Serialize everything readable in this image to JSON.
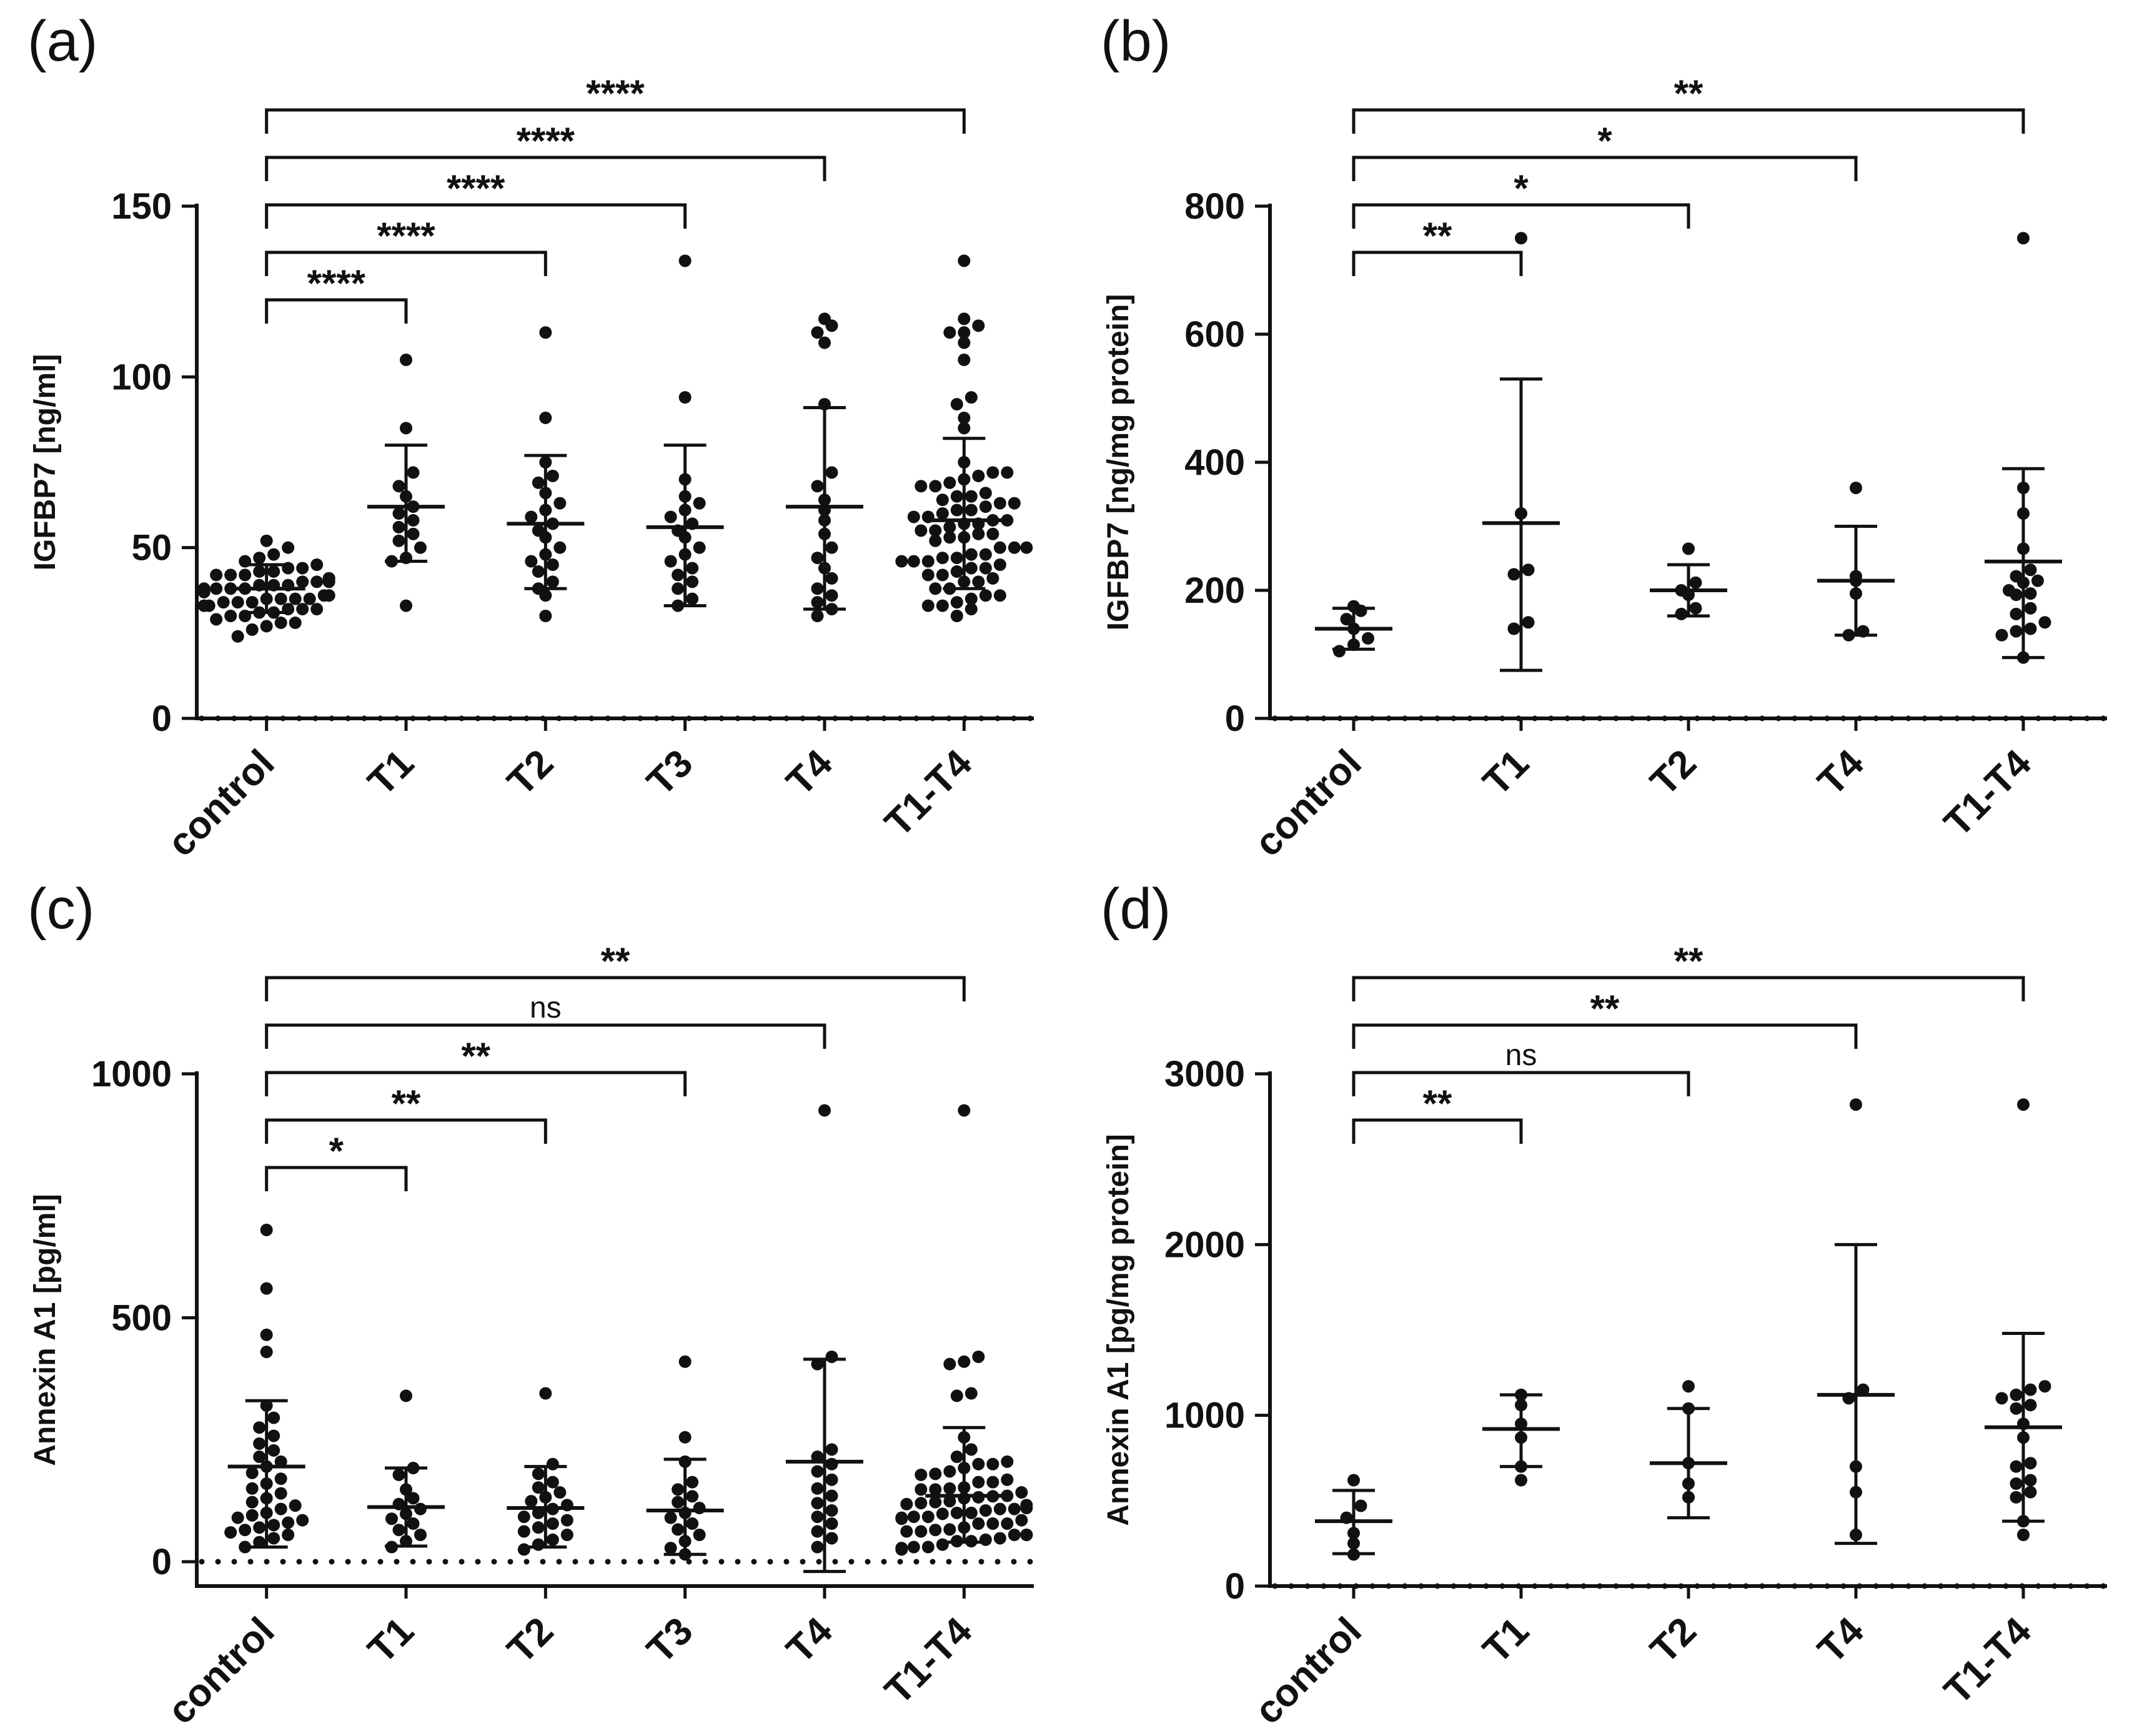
{
  "colors": {
    "ink": "#111111",
    "background": "#ffffff"
  },
  "chart_data": [
    {
      "type": "scatter",
      "panel_label": "(a)",
      "ylabel": "IGFBP7 [ng/ml]",
      "ylim": [
        0,
        150
      ],
      "yticks": [
        0,
        50,
        100,
        150
      ],
      "categories": [
        "control",
        "T1",
        "T2",
        "T3",
        "T4",
        "T1-T4"
      ],
      "groups": [
        {
          "label": "control",
          "median": 38,
          "err_low": 31,
          "err_high": 45,
          "values": [
            24,
            26,
            27,
            28,
            28,
            29,
            30,
            30,
            31,
            31,
            32,
            32,
            32,
            33,
            33,
            33,
            34,
            34,
            34,
            35,
            35,
            35,
            35,
            36,
            36,
            36,
            37,
            37,
            37,
            38,
            38,
            38,
            38,
            39,
            39,
            39,
            40,
            40,
            40,
            41,
            41,
            41,
            42,
            42,
            42,
            43,
            43,
            44,
            44,
            45,
            46,
            47,
            48,
            50,
            52
          ]
        },
        {
          "label": "T1",
          "median": 62,
          "err_low": 46,
          "err_high": 80,
          "values": [
            33,
            46,
            47,
            50,
            52,
            54,
            56,
            58,
            60,
            62,
            65,
            68,
            72,
            85,
            105
          ]
        },
        {
          "label": "T2",
          "median": 57,
          "err_low": 38,
          "err_high": 77,
          "values": [
            30,
            36,
            38,
            40,
            43,
            45,
            46,
            48,
            50,
            53,
            55,
            57,
            59,
            61,
            63,
            66,
            69,
            71,
            75,
            88,
            113
          ]
        },
        {
          "label": "T3",
          "median": 56,
          "err_low": 33,
          "err_high": 80,
          "values": [
            33,
            35,
            38,
            40,
            42,
            44,
            46,
            48,
            50,
            53,
            55,
            57,
            59,
            61,
            63,
            65,
            70,
            94,
            134
          ]
        },
        {
          "label": "T4",
          "median": 62,
          "err_low": 32,
          "err_high": 91,
          "values": [
            30,
            32,
            34,
            36,
            38,
            41,
            44,
            47,
            50,
            54,
            58,
            61,
            64,
            68,
            72,
            92,
            110,
            113,
            115,
            117
          ]
        },
        {
          "label": "T1-T4",
          "median": 58,
          "err_low": 38,
          "err_high": 82,
          "values": [
            30,
            32,
            33,
            33,
            34,
            35,
            36,
            36,
            38,
            38,
            40,
            40,
            41,
            42,
            42,
            43,
            44,
            44,
            45,
            46,
            46,
            46,
            47,
            47,
            48,
            48,
            50,
            50,
            50,
            52,
            53,
            53,
            54,
            54,
            55,
            55,
            56,
            57,
            57,
            58,
            58,
            59,
            59,
            60,
            61,
            61,
            62,
            63,
            63,
            64,
            65,
            65,
            66,
            68,
            68,
            69,
            70,
            71,
            72,
            72,
            75,
            85,
            88,
            92,
            94,
            105,
            110,
            113,
            113,
            115,
            117,
            134
          ]
        }
      ],
      "brackets": [
        {
          "from": "control",
          "to": "T1",
          "label": "****"
        },
        {
          "from": "control",
          "to": "T2",
          "label": "****"
        },
        {
          "from": "control",
          "to": "T3",
          "label": "****"
        },
        {
          "from": "control",
          "to": "T4",
          "label": "****"
        },
        {
          "from": "control",
          "to": "T1-T4",
          "label": "****"
        }
      ]
    },
    {
      "type": "scatter",
      "panel_label": "(b)",
      "ylabel": "IGFBP7 [ng/mg protein]",
      "ylim": [
        0,
        800
      ],
      "yticks": [
        0,
        200,
        400,
        600,
        800
      ],
      "categories": [
        "control",
        "T1",
        "T2",
        "T4",
        "T1-T4"
      ],
      "groups": [
        {
          "label": "control",
          "median": 140,
          "err_low": 108,
          "err_high": 172,
          "values": [
            105,
            115,
            125,
            140,
            155,
            168,
            175
          ]
        },
        {
          "label": "T1",
          "median": 305,
          "err_low": 75,
          "err_high": 530,
          "values": [
            140,
            150,
            225,
            232,
            320,
            750
          ]
        },
        {
          "label": "T2",
          "median": 200,
          "err_low": 160,
          "err_high": 240,
          "values": [
            163,
            172,
            193,
            200,
            212,
            265
          ]
        },
        {
          "label": "T4",
          "median": 215,
          "err_low": 130,
          "err_high": 300,
          "values": [
            130,
            136,
            195,
            215,
            222,
            360
          ]
        },
        {
          "label": "T1-T4",
          "median": 245,
          "err_low": 95,
          "err_high": 390,
          "values": [
            95,
            130,
            136,
            140,
            150,
            163,
            172,
            193,
            195,
            200,
            212,
            215,
            222,
            232,
            265,
            320,
            360,
            750
          ]
        }
      ],
      "brackets": [
        {
          "from": "control",
          "to": "T1",
          "label": "**"
        },
        {
          "from": "control",
          "to": "T2",
          "label": "*"
        },
        {
          "from": "control",
          "to": "T4",
          "label": "*"
        },
        {
          "from": "control",
          "to": "T1-T4",
          "label": "**"
        }
      ]
    },
    {
      "type": "scatter",
      "panel_label": "(c)",
      "ylabel": "Annexin A1 [pg/ml]",
      "ylim": [
        0,
        1000
      ],
      "ydraw_min": -50,
      "yticks": [
        0,
        500,
        1000
      ],
      "zero_dotted_line": true,
      "categories": [
        "control",
        "T1",
        "T2",
        "T3",
        "T4",
        "T1-T4"
      ],
      "groups": [
        {
          "label": "control",
          "median": 195,
          "err_low": 30,
          "err_high": 330,
          "values": [
            30,
            40,
            48,
            55,
            60,
            65,
            70,
            75,
            80,
            85,
            90,
            95,
            100,
            108,
            115,
            122,
            130,
            140,
            150,
            160,
            170,
            182,
            195,
            205,
            215,
            228,
            242,
            258,
            275,
            295,
            320,
            430,
            465,
            560,
            680
          ]
        },
        {
          "label": "T1",
          "median": 112,
          "err_low": 32,
          "err_high": 192,
          "values": [
            30,
            42,
            55,
            65,
            78,
            88,
            98,
            108,
            118,
            130,
            148,
            178,
            192,
            340
          ]
        },
        {
          "label": "T2",
          "median": 110,
          "err_low": 30,
          "err_high": 195,
          "values": [
            25,
            35,
            45,
            55,
            62,
            70,
            78,
            85,
            92,
            100,
            108,
            116,
            124,
            132,
            142,
            152,
            163,
            180,
            200,
            345
          ]
        },
        {
          "label": "T3",
          "median": 105,
          "err_low": 15,
          "err_high": 210,
          "values": [
            15,
            28,
            42,
            55,
            66,
            78,
            90,
            100,
            110,
            122,
            134,
            148,
            163,
            205,
            255,
            410
          ]
        },
        {
          "label": "T4",
          "median": 205,
          "err_low": -20,
          "err_high": 415,
          "values": [
            30,
            48,
            62,
            78,
            92,
            105,
            120,
            135,
            150,
            168,
            185,
            200,
            215,
            230,
            405,
            420,
            925
          ]
        },
        {
          "label": "T1-T4",
          "median": 135,
          "err_low": 40,
          "err_high": 275,
          "values": [
            25,
            28,
            30,
            30,
            35,
            42,
            42,
            45,
            48,
            55,
            55,
            55,
            62,
            62,
            65,
            66,
            70,
            78,
            78,
            78,
            85,
            88,
            90,
            92,
            92,
            98,
            100,
            100,
            105,
            108,
            108,
            110,
            116,
            118,
            120,
            122,
            124,
            130,
            132,
            134,
            135,
            142,
            148,
            148,
            150,
            152,
            163,
            163,
            168,
            178,
            180,
            185,
            192,
            200,
            200,
            205,
            215,
            230,
            255,
            340,
            345,
            405,
            410,
            420,
            925
          ]
        }
      ],
      "brackets": [
        {
          "from": "control",
          "to": "T1",
          "label": "*"
        },
        {
          "from": "control",
          "to": "T2",
          "label": "**"
        },
        {
          "from": "control",
          "to": "T3",
          "label": "**"
        },
        {
          "from": "control",
          "to": "T4",
          "label": "ns"
        },
        {
          "from": "control",
          "to": "T1-T4",
          "label": "**"
        }
      ]
    },
    {
      "type": "scatter",
      "panel_label": "(d)",
      "ylabel": "Annexin A1 [pg/mg protein]",
      "ylim": [
        0,
        3000
      ],
      "yticks": [
        0,
        1000,
        2000,
        3000
      ],
      "categories": [
        "control",
        "T1",
        "T2",
        "T4",
        "T1-T4"
      ],
      "groups": [
        {
          "label": "control",
          "median": 380,
          "err_low": 190,
          "err_high": 560,
          "values": [
            185,
            250,
            310,
            400,
            470,
            620
          ]
        },
        {
          "label": "T1",
          "median": 920,
          "err_low": 700,
          "err_high": 1120,
          "values": [
            620,
            700,
            870,
            950,
            1060,
            1120
          ]
        },
        {
          "label": "T2",
          "median": 720,
          "err_low": 400,
          "err_high": 1040,
          "values": [
            520,
            600,
            720,
            1040,
            1170
          ]
        },
        {
          "label": "T4",
          "median": 1120,
          "err_low": 250,
          "err_high": 2000,
          "values": [
            300,
            550,
            700,
            1100,
            1150,
            2820
          ]
        },
        {
          "label": "T1-T4",
          "median": 930,
          "err_low": 380,
          "err_high": 1480,
          "values": [
            300,
            380,
            520,
            550,
            600,
            620,
            700,
            720,
            870,
            950,
            1040,
            1060,
            1100,
            1120,
            1150,
            1170,
            2820
          ]
        }
      ],
      "brackets": [
        {
          "from": "control",
          "to": "T1",
          "label": "**"
        },
        {
          "from": "control",
          "to": "T2",
          "label": "ns"
        },
        {
          "from": "control",
          "to": "T4",
          "label": "**"
        },
        {
          "from": "control",
          "to": "T1-T4",
          "label": "**"
        }
      ]
    }
  ]
}
